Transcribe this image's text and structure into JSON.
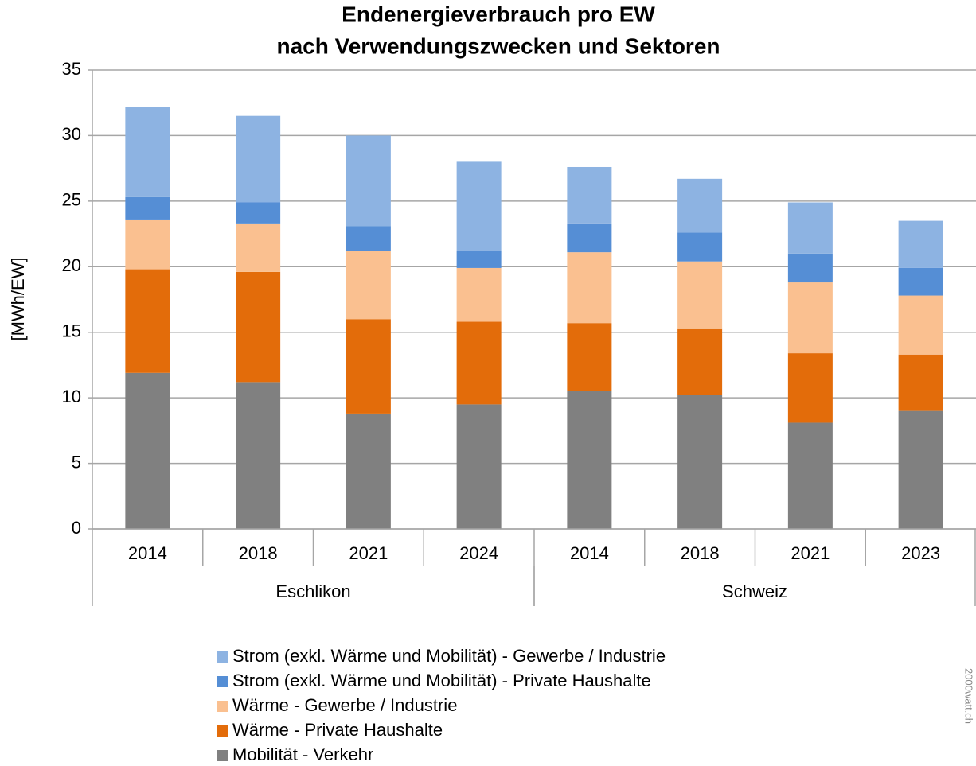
{
  "chart_data": {
    "type": "stacked_bar",
    "title": "Endenergieverbrauch pro EW",
    "subtitle": "nach Verwendungszwecken und Sektoren",
    "y_label": "[MWh/EW]",
    "source": "2000watt.ch",
    "groups": [
      {
        "name": "Eschlikon",
        "categories": [
          "2014",
          "2018",
          "2021",
          "2024"
        ]
      },
      {
        "name": "Schweiz",
        "categories": [
          "2014",
          "2018",
          "2021",
          "2023"
        ]
      }
    ],
    "series": [
      {
        "name": "Mobilität - Verkehr",
        "color": "#808080",
        "values": [
          11.9,
          11.2,
          8.8,
          9.5,
          10.5,
          10.2,
          8.1,
          9.0
        ]
      },
      {
        "name": "Wärme - Private Haushalte",
        "color": "#e36c0a",
        "values": [
          7.9,
          8.4,
          7.2,
          6.3,
          5.2,
          5.1,
          5.3,
          4.3
        ]
      },
      {
        "name": "Wärme - Gewerbe / Industrie",
        "color": "#fac090",
        "values": [
          3.8,
          3.7,
          5.2,
          4.1,
          5.4,
          5.1,
          5.4,
          4.5
        ]
      },
      {
        "name": "Strom (exkl. Wärme und Mobilität) - Private Haushalte",
        "color": "#558ed5",
        "values": [
          1.7,
          1.6,
          1.9,
          1.3,
          2.2,
          2.2,
          2.2,
          2.1
        ]
      },
      {
        "name": "Strom (exkl. Wärme und Mobilität) - Gewerbe / Industrie",
        "color": "#8db3e2",
        "values": [
          6.9,
          6.6,
          6.9,
          6.8,
          4.3,
          4.1,
          3.9,
          3.6
        ]
      }
    ],
    "ylim": [
      0,
      35
    ],
    "yticks": [
      0,
      5,
      10,
      15,
      20,
      25,
      30,
      35
    ],
    "grid": true
  }
}
